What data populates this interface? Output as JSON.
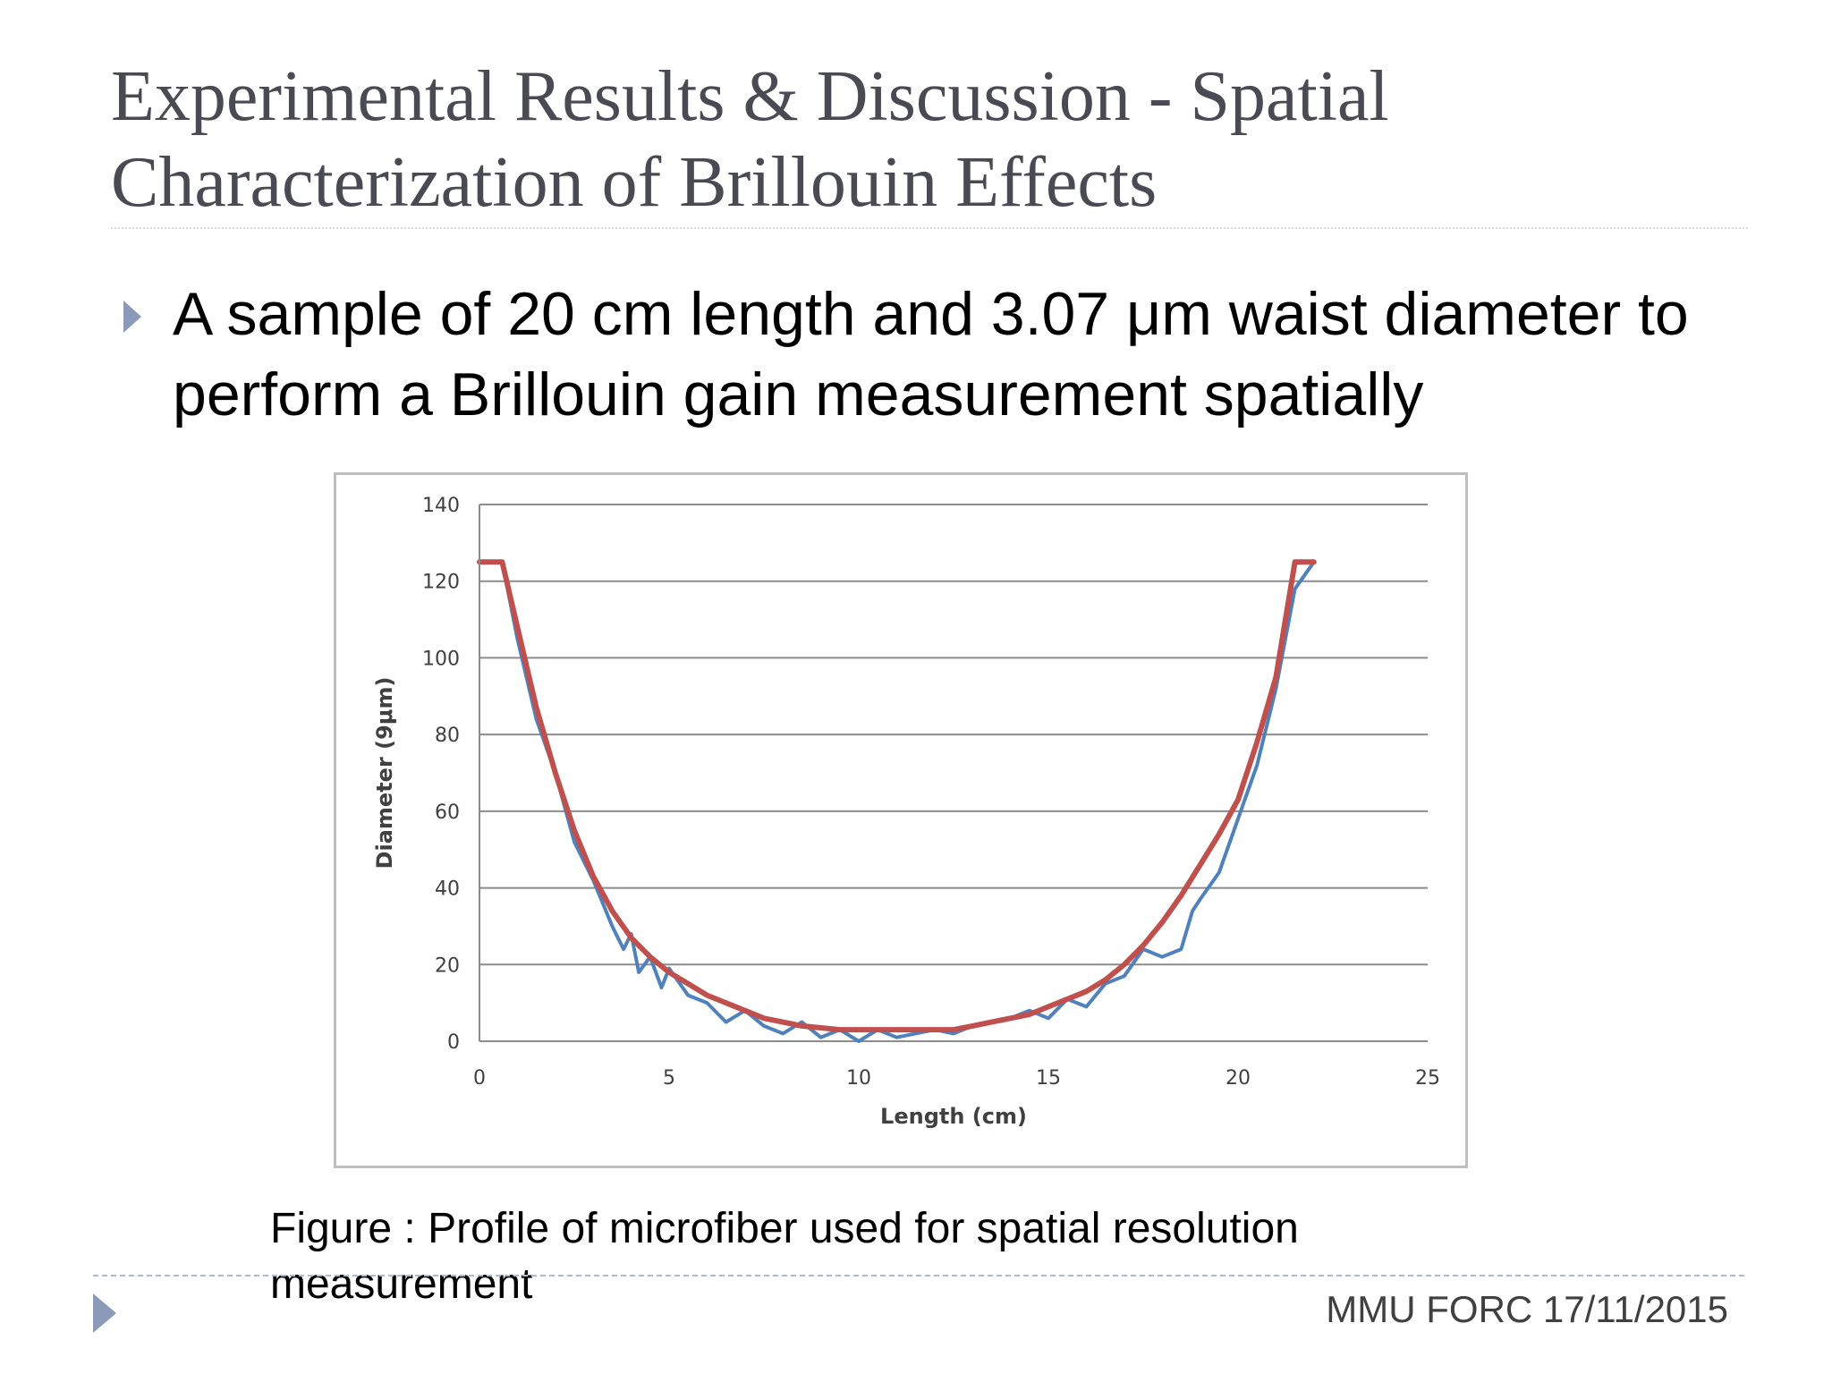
{
  "slide": {
    "title": "Experimental Results & Discussion - Spatial Characterization of Brillouin Effects",
    "bullet": "A sample of 20 cm length and 3.07 μm waist diameter to perform a Brillouin gain measurement spatially",
    "caption": "Figure : Profile of microfiber used for spatial resolution measurement",
    "footer": "MMU FORC 17/11/2015"
  },
  "chart_data": {
    "type": "line",
    "xlabel": "Length (cm)",
    "ylabel": "Diameter (9μm)",
    "xlim": [
      0,
      25
    ],
    "ylim": [
      0,
      140
    ],
    "xticks": [
      0,
      5,
      10,
      15,
      20,
      25
    ],
    "yticks": [
      0,
      20,
      40,
      60,
      80,
      100,
      120,
      140
    ],
    "grid": "horizontal",
    "legend": "none",
    "colors": {
      "measured": "#4f81bd",
      "fit": "#c0504d"
    },
    "series": [
      {
        "color": "#4f81bd",
        "x": [
          0,
          0.6,
          1.0,
          1.5,
          2.0,
          2.5,
          3.0,
          3.5,
          3.8,
          4.0,
          4.2,
          4.5,
          4.8,
          5.0,
          5.5,
          6.0,
          6.5,
          7.0,
          7.5,
          8.0,
          8.5,
          9.0,
          9.5,
          10.0,
          10.5,
          11.0,
          11.5,
          12.0,
          12.5,
          13.0,
          13.5,
          14.0,
          14.5,
          15.0,
          15.5,
          16.0,
          16.5,
          17.0,
          17.5,
          18.0,
          18.5,
          18.8,
          19.0,
          19.5,
          20.0,
          20.5,
          21.0,
          21.5,
          22.0
        ],
        "y": [
          125,
          125,
          105,
          84,
          70,
          52,
          42,
          30,
          24,
          28,
          18,
          22,
          14,
          19,
          12,
          10,
          5,
          8,
          4,
          2,
          5,
          1,
          3,
          0,
          3,
          1,
          2,
          3,
          2,
          4,
          5,
          6,
          8,
          6,
          11,
          9,
          15,
          17,
          24,
          22,
          24,
          34,
          37,
          44,
          58,
          72,
          92,
          118,
          125
        ]
      },
      {
        "color": "#c0504d",
        "x": [
          0,
          0.6,
          1.0,
          1.5,
          2.0,
          2.5,
          3.0,
          3.5,
          4.0,
          4.5,
          5.0,
          5.5,
          6.0,
          6.5,
          7.0,
          7.5,
          8.0,
          8.5,
          9.0,
          9.5,
          10.0,
          10.5,
          11.0,
          11.5,
          12.0,
          12.5,
          13.0,
          13.5,
          14.0,
          14.5,
          15.0,
          15.5,
          16.0,
          16.5,
          17.0,
          17.5,
          18.0,
          18.5,
          19.0,
          19.5,
          20.0,
          20.5,
          21.0,
          21.5,
          22.0
        ],
        "y": [
          125,
          125,
          108,
          87,
          70,
          55,
          43,
          34,
          27,
          22,
          18,
          15,
          12,
          10,
          8,
          6,
          5,
          4,
          3.5,
          3,
          3,
          3,
          3,
          3,
          3,
          3,
          4,
          5,
          6,
          7,
          9,
          11,
          13,
          16,
          20,
          25,
          31,
          38,
          46,
          54,
          63,
          78,
          95,
          125,
          125
        ]
      }
    ]
  }
}
